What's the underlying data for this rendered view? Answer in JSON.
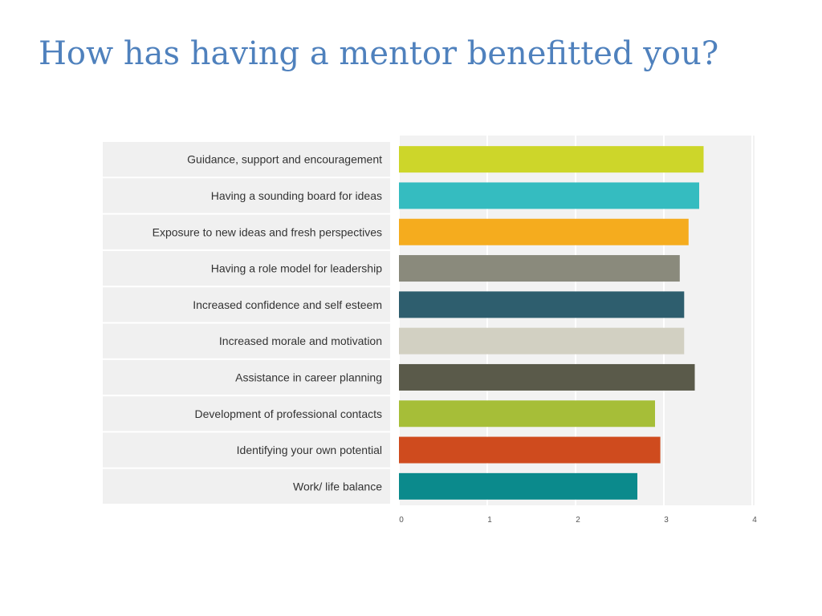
{
  "slide": {
    "title": "How has having a mentor benefitted you?"
  },
  "chart_data": {
    "type": "bar",
    "orientation": "horizontal",
    "categories": [
      "Guidance, support  and encouragement",
      "Having a sounding  board for ideas",
      "Exposure to new ideas and fresh perspectives",
      "Having a role model for leadership",
      "Increased confidence  and self  esteem",
      "Increased morale and motivation",
      "Assistance  in career planning",
      "Development  of professional  contacts",
      "Identifying  your own potential",
      "Work/  life balance"
    ],
    "values": [
      3.45,
      3.4,
      3.28,
      3.18,
      3.23,
      3.23,
      3.35,
      2.9,
      2.96,
      2.7
    ],
    "colors": [
      "#cdd62a",
      "#35bcc0",
      "#f5ac1e",
      "#8a8a7c",
      "#2e5e6e",
      "#d2d0c2",
      "#5a5a4a",
      "#a6be38",
      "#cf4b1e",
      "#0b8a8c"
    ],
    "xlim": [
      0,
      4
    ],
    "xticks": [
      "0",
      "1",
      "2",
      "3",
      "4"
    ],
    "grid": true,
    "legend": "none"
  }
}
